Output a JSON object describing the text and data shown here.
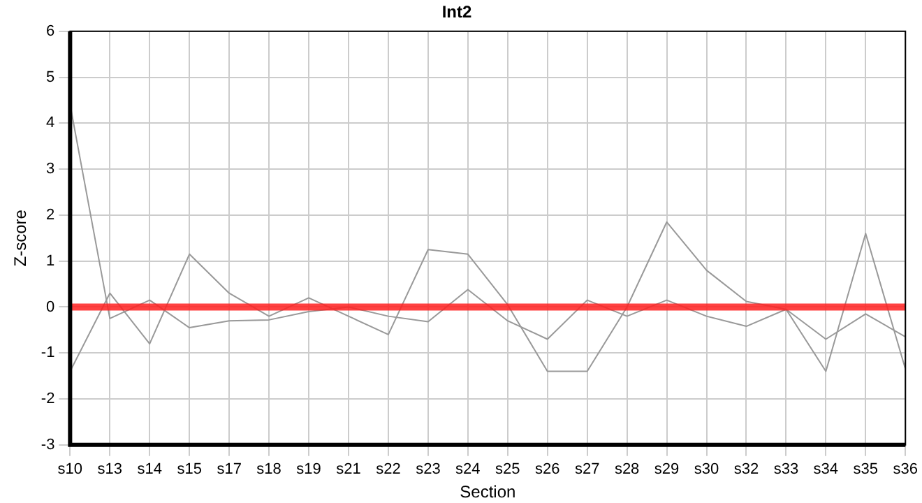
{
  "chart_data": {
    "type": "line",
    "title": "Int2",
    "xlabel": "Section",
    "ylabel": "Z-score",
    "categories": [
      "s10",
      "s13",
      "s14",
      "s15",
      "s17",
      "s18",
      "s19",
      "s21",
      "s22",
      "s23",
      "s24",
      "s25",
      "s26",
      "s27",
      "s28",
      "s29",
      "s30",
      "s32",
      "s33",
      "s34",
      "s35",
      "s36"
    ],
    "series": [
      {
        "color": "#999999",
        "values": [
          4.4,
          -0.25,
          0.15,
          -0.45,
          -0.3,
          -0.28,
          -0.1,
          0,
          -0.2,
          -0.32,
          0.38,
          -0.3,
          -0.7,
          0.15,
          -0.2,
          0.15,
          -0.2,
          -0.42,
          -0.05,
          -0.7,
          -0.15,
          -0.65
        ]
      },
      {
        "color": "#999999",
        "values": [
          -1.4,
          0.3,
          -0.8,
          1.15,
          0.3,
          -0.2,
          0.2,
          -0.2,
          -0.6,
          1.25,
          1.15,
          0.05,
          -1.4,
          -1.4,
          0,
          1.85,
          0.8,
          0.12,
          -0.05,
          -1.4,
          1.6,
          -1.35
        ]
      }
    ],
    "ref_lines": [
      {
        "axis": "y",
        "value": 0,
        "color": "#ff2020"
      }
    ],
    "ylim": [
      -3,
      6
    ],
    "yticks": [
      -3,
      -2,
      -1,
      0,
      1,
      2,
      3,
      4,
      5,
      6
    ],
    "grid": true,
    "legend": false,
    "marker": "none",
    "line_style": "solid"
  }
}
